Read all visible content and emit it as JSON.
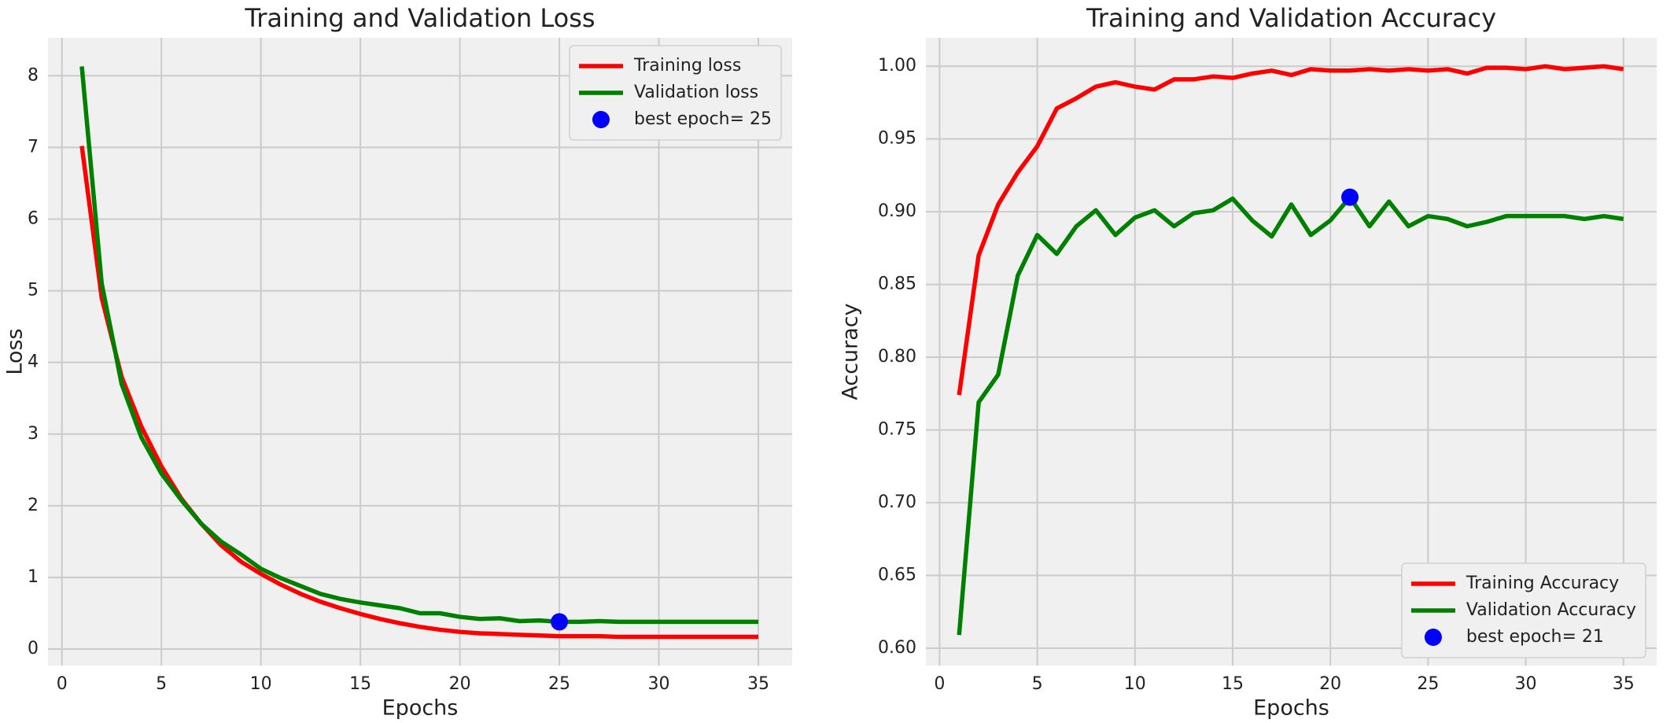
{
  "chart_data": [
    {
      "type": "line",
      "title": "Training and Validation Loss",
      "xlabel": "Epochs",
      "ylabel": "Loss",
      "x": [
        1,
        2,
        3,
        4,
        5,
        6,
        7,
        8,
        9,
        10,
        11,
        12,
        13,
        14,
        15,
        16,
        17,
        18,
        19,
        20,
        21,
        22,
        23,
        24,
        25,
        26,
        27,
        28,
        29,
        30,
        31,
        32,
        33,
        34,
        35
      ],
      "series": [
        {
          "name": "Training loss",
          "color": "#ff0000",
          "values": [
            7.02,
            4.9,
            3.8,
            3.1,
            2.55,
            2.1,
            1.75,
            1.45,
            1.22,
            1.05,
            0.9,
            0.77,
            0.66,
            0.57,
            0.49,
            0.42,
            0.36,
            0.31,
            0.27,
            0.24,
            0.22,
            0.21,
            0.2,
            0.19,
            0.18,
            0.18,
            0.18,
            0.17,
            0.17,
            0.17,
            0.17,
            0.17,
            0.17,
            0.17,
            0.17
          ]
        },
        {
          "name": "Validation loss",
          "color": "#008000",
          "values": [
            8.13,
            5.1,
            3.7,
            2.95,
            2.45,
            2.08,
            1.75,
            1.5,
            1.32,
            1.12,
            0.99,
            0.88,
            0.77,
            0.7,
            0.65,
            0.61,
            0.57,
            0.5,
            0.5,
            0.45,
            0.42,
            0.43,
            0.39,
            0.4,
            0.38,
            0.38,
            0.39,
            0.38,
            0.38,
            0.38,
            0.38,
            0.38,
            0.38,
            0.38,
            0.38
          ]
        },
        {
          "name": "best epoch= 25",
          "color": "#0000ff",
          "kind": "scatter",
          "x": [
            25
          ],
          "values": [
            0.38
          ]
        }
      ],
      "xlim": [
        -0.7,
        36.7
      ],
      "xticks": [
        0,
        5,
        10,
        15,
        20,
        25,
        30,
        35
      ],
      "ylim": [
        -0.23,
        8.53
      ],
      "yticks": [
        0,
        1,
        2,
        3,
        4,
        5,
        6,
        7,
        8
      ],
      "grid": true,
      "legend": "upper right"
    },
    {
      "type": "line",
      "title": "Training and Validation Accuracy",
      "xlabel": "Epochs",
      "ylabel": "Accuracy",
      "x": [
        1,
        2,
        3,
        4,
        5,
        6,
        7,
        8,
        9,
        10,
        11,
        12,
        13,
        14,
        15,
        16,
        17,
        18,
        19,
        20,
        21,
        22,
        23,
        24,
        25,
        26,
        27,
        28,
        29,
        30,
        31,
        32,
        33,
        34,
        35
      ],
      "series": [
        {
          "name": "Training Accuracy",
          "color": "#ff0000",
          "values": [
            0.774,
            0.87,
            0.905,
            0.927,
            0.945,
            0.971,
            0.978,
            0.986,
            0.989,
            0.986,
            0.984,
            0.991,
            0.991,
            0.993,
            0.992,
            0.995,
            0.997,
            0.994,
            0.998,
            0.997,
            0.997,
            0.998,
            0.997,
            0.998,
            0.997,
            0.998,
            0.995,
            0.999,
            0.999,
            0.998,
            1.0,
            0.998,
            0.999,
            1.0,
            0.998
          ]
        },
        {
          "name": "Validation Accuracy",
          "color": "#008000",
          "values": [
            0.609,
            0.769,
            0.788,
            0.856,
            0.884,
            0.871,
            0.89,
            0.901,
            0.884,
            0.896,
            0.901,
            0.89,
            0.899,
            0.901,
            0.909,
            0.894,
            0.883,
            0.905,
            0.884,
            0.894,
            0.91,
            0.89,
            0.907,
            0.89,
            0.897,
            0.895,
            0.89,
            0.893,
            0.897,
            0.897,
            0.897,
            0.897,
            0.895,
            0.897,
            0.895
          ]
        },
        {
          "name": "best epoch= 21",
          "color": "#0000ff",
          "kind": "scatter",
          "x": [
            21
          ],
          "values": [
            0.91
          ]
        }
      ],
      "xlim": [
        -0.7,
        36.7
      ],
      "xticks": [
        0,
        5,
        10,
        15,
        20,
        25,
        30,
        35
      ],
      "ylim": [
        0.588,
        1.0196
      ],
      "yticks": [
        {
          "value": 0.6,
          "label": "0.60"
        },
        {
          "value": 0.65,
          "label": "0.65"
        },
        {
          "value": 0.7,
          "label": "0.70"
        },
        {
          "value": 0.75,
          "label": "0.75"
        },
        {
          "value": 0.8,
          "label": "0.80"
        },
        {
          "value": 0.85,
          "label": "0.85"
        },
        {
          "value": 0.9,
          "label": "0.90"
        },
        {
          "value": 0.95,
          "label": "0.95"
        },
        {
          "value": 1.0,
          "label": "1.00"
        }
      ],
      "grid": true,
      "legend": "lower right"
    }
  ]
}
